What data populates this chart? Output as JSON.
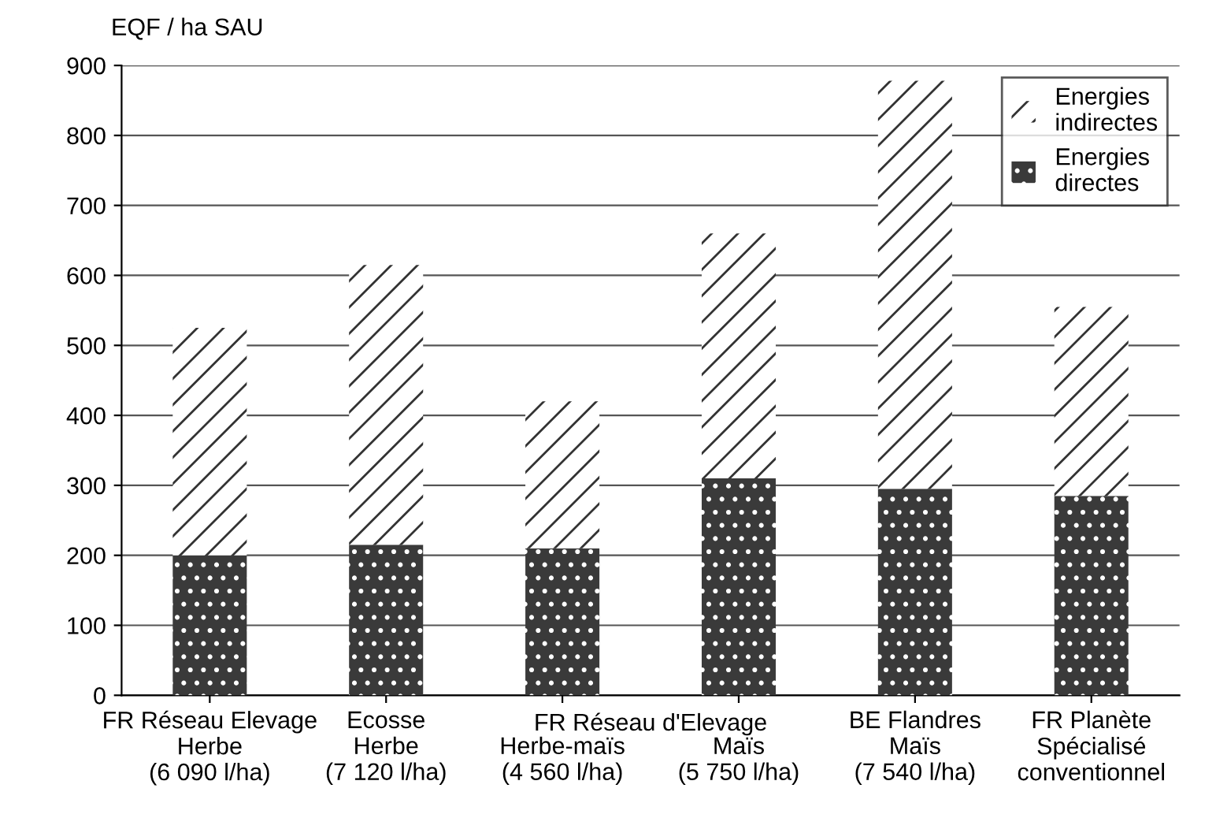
{
  "chart_data": {
    "type": "bar",
    "stacked": true,
    "ylabel": "EQF / ha SAU",
    "categories": [
      "FR Réseau Elevage\nHerbe\n(6 090 l/ha)",
      "Ecosse\nHerbe\n(7 120 l/ha)",
      "Herbe-maïs\n(4 560 l/ha)",
      "Maïs\n(5 750 l/ha)",
      "BE Flandres\nMaïs\n(7 540 l/ha)",
      "FR Planète\nSpécialisé\nconventionnel"
    ],
    "series": [
      {
        "name": "Energies\ndirectes",
        "color": "#3a3a3a",
        "values": [
          200,
          215,
          210,
          310,
          295,
          285
        ]
      },
      {
        "name": "Energies\nindirectes",
        "color": "#ffffff",
        "values": [
          325,
          400,
          210,
          350,
          583,
          270
        ]
      }
    ],
    "annotations": [
      "FR Réseau d'Elevage"
    ],
    "ylim": [
      0,
      900
    ],
    "yticks": [
      0,
      100,
      200,
      300,
      400,
      500,
      600,
      700,
      800,
      900
    ],
    "grid": "y",
    "legend": "top right"
  }
}
